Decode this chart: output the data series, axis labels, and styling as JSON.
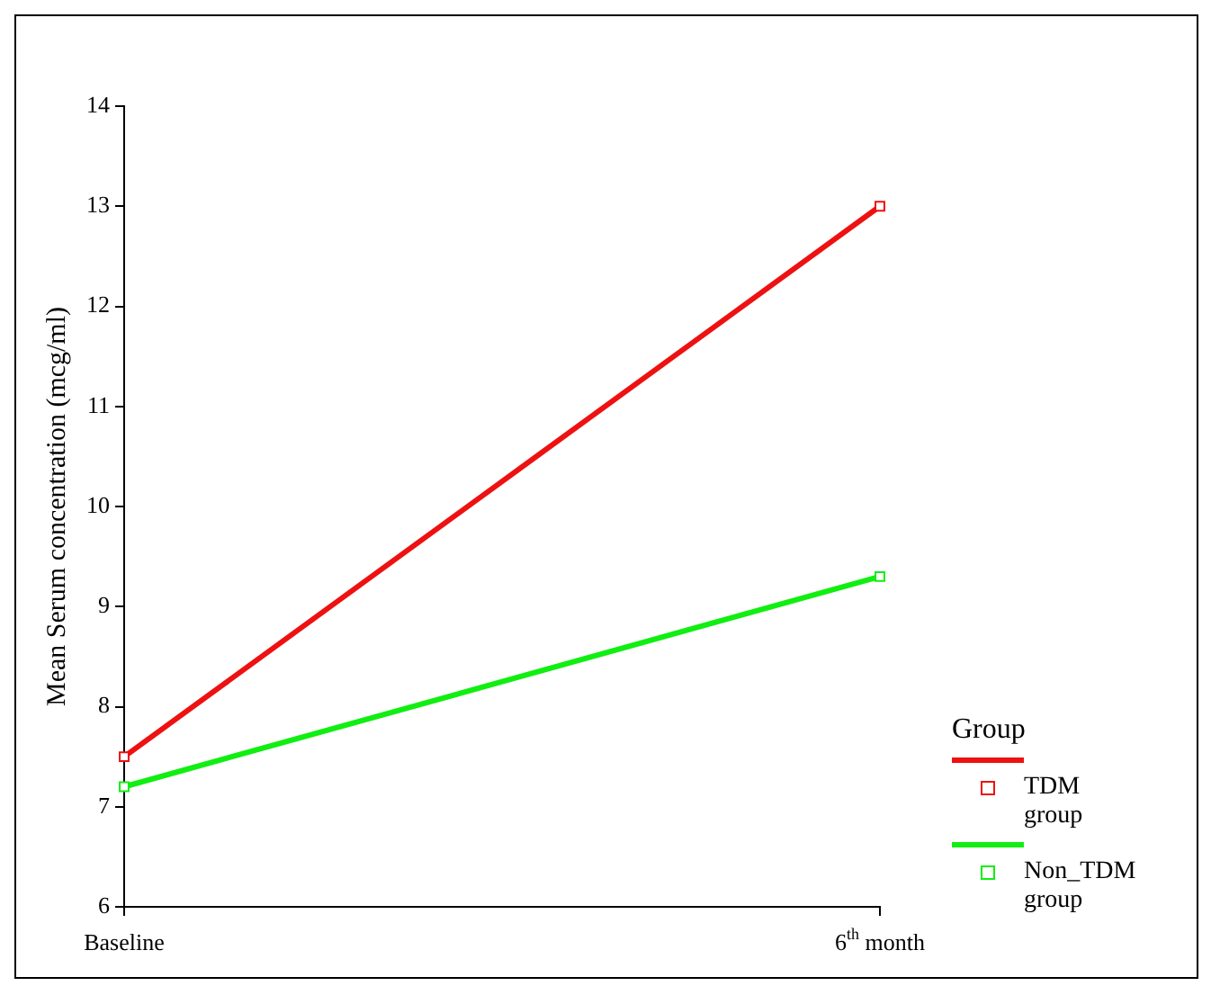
{
  "chart_data": {
    "type": "line",
    "ylabel": "Mean Serum concentration (mcg/ml)",
    "legend_title": "Group",
    "categories": [
      "Baseline",
      "6$^{th}$ month"
    ],
    "series": [
      {
        "name": "TDM group",
        "color": "#ee1111",
        "values": [
          7.5,
          13.0
        ]
      },
      {
        "name": "Non_TDM group",
        "color": "#11ee11",
        "values": [
          7.2,
          9.3
        ]
      }
    ],
    "ylim": [
      6,
      14
    ],
    "yticks": [
      6,
      7,
      8,
      9,
      10,
      11,
      12,
      13,
      14
    ],
    "grid": false,
    "legend": "right",
    "marker": "square",
    "line_style": "solid"
  }
}
